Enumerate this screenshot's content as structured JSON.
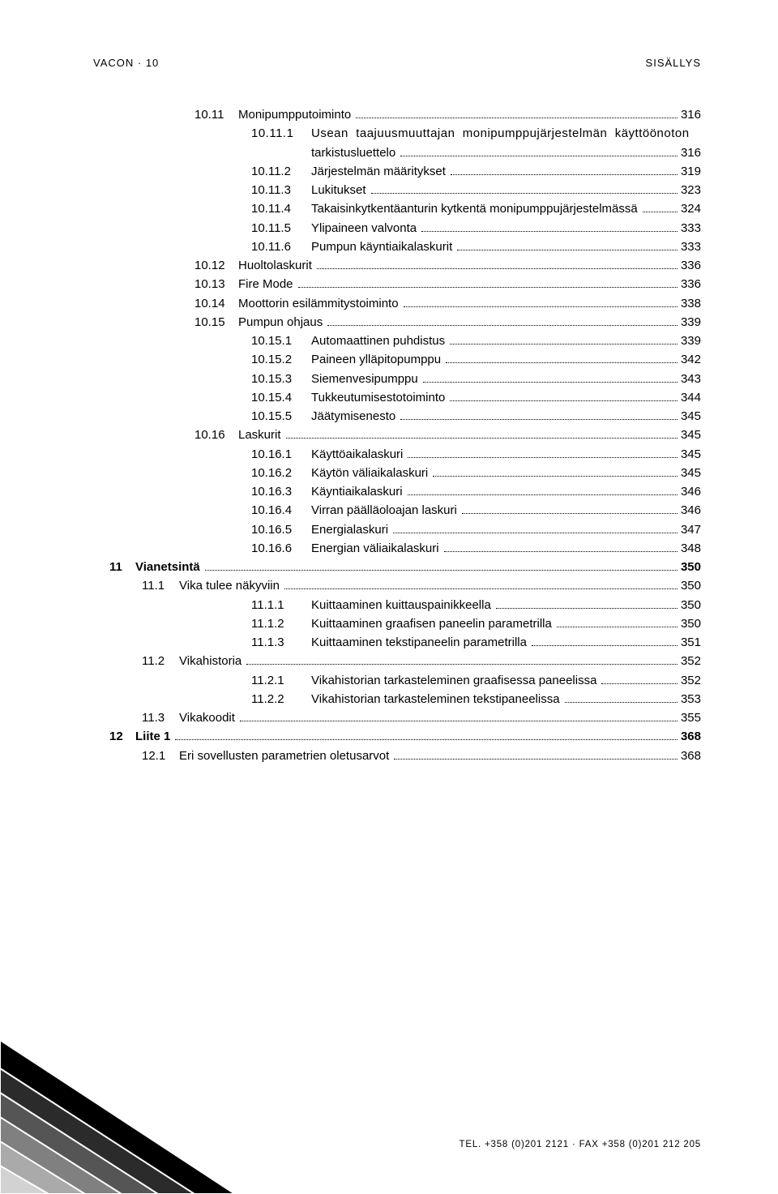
{
  "header": {
    "left": "VACON · 10",
    "right": "SISÄLLYS"
  },
  "footer": "TEL. +358 (0)201 2121 · FAX +358 (0)201 212 205",
  "toc": [
    {
      "lvl": 3,
      "num": "10.11",
      "title": "Monipumpputoiminto",
      "page": "316"
    },
    {
      "lvl": 4,
      "num": "10.11.1",
      "title": "Usean  taajuusmuuttajan  monipumppujärjestelmän  käyttöönoton tarkistusluettelo",
      "page": "316",
      "wrap": true
    },
    {
      "lvl": 4,
      "num": "10.11.2",
      "title": "Järjestelmän määritykset",
      "page": "319"
    },
    {
      "lvl": 4,
      "num": "10.11.3",
      "title": "Lukitukset",
      "page": "323"
    },
    {
      "lvl": 4,
      "num": "10.11.4",
      "title": "Takaisinkytkentäanturin kytkentä monipumppujärjestelmässä",
      "page": "324"
    },
    {
      "lvl": 4,
      "num": "10.11.5",
      "title": "Ylipaineen valvonta",
      "page": "333"
    },
    {
      "lvl": 4,
      "num": "10.11.6",
      "title": "Pumpun käyntiaikalaskurit",
      "page": "333"
    },
    {
      "lvl": 3,
      "num": "10.12",
      "title": "Huoltolaskurit",
      "page": "336"
    },
    {
      "lvl": 3,
      "num": "10.13",
      "title": "Fire Mode",
      "page": "336"
    },
    {
      "lvl": 3,
      "num": "10.14",
      "title": "Moottorin esilämmitystoiminto",
      "page": "338"
    },
    {
      "lvl": 3,
      "num": "10.15",
      "title": "Pumpun ohjaus",
      "page": "339"
    },
    {
      "lvl": 4,
      "num": "10.15.1",
      "title": "Automaattinen puhdistus",
      "page": "339"
    },
    {
      "lvl": 4,
      "num": "10.15.2",
      "title": "Paineen ylläpitopumppu",
      "page": "342"
    },
    {
      "lvl": 4,
      "num": "10.15.3",
      "title": "Siemenvesipumppu",
      "page": "343"
    },
    {
      "lvl": 4,
      "num": "10.15.4",
      "title": "Tukkeutumisestotoiminto",
      "page": "344"
    },
    {
      "lvl": 4,
      "num": "10.15.5",
      "title": "Jäätymisenesto",
      "page": "345"
    },
    {
      "lvl": 3,
      "num": "10.16",
      "title": "Laskurit",
      "page": "345"
    },
    {
      "lvl": 4,
      "num": "10.16.1",
      "title": "Käyttöaikalaskuri",
      "page": "345"
    },
    {
      "lvl": 4,
      "num": "10.16.2",
      "title": "Käytön väliaikalaskuri",
      "page": "345"
    },
    {
      "lvl": 4,
      "num": "10.16.3",
      "title": "Käyntiaikalaskuri",
      "page": "346"
    },
    {
      "lvl": 4,
      "num": "10.16.4",
      "title": "Virran päälläoloajan laskuri",
      "page": "346"
    },
    {
      "lvl": 4,
      "num": "10.16.5",
      "title": "Energialaskuri",
      "page": "347"
    },
    {
      "lvl": 4,
      "num": "10.16.6",
      "title": "Energian väliaikalaskuri",
      "page": "348"
    },
    {
      "lvl": 1,
      "num": "11",
      "title": "Vianetsintä",
      "page": "350"
    },
    {
      "lvl": 2,
      "num": "11.1",
      "title": "Vika tulee näkyviin",
      "page": "350"
    },
    {
      "lvl": 4,
      "num": "11.1.1",
      "title": "Kuittaaminen kuittauspainikkeella",
      "page": "350"
    },
    {
      "lvl": 4,
      "num": "11.1.2",
      "title": "Kuittaaminen graafisen paneelin parametrilla",
      "page": "350"
    },
    {
      "lvl": 4,
      "num": "11.1.3",
      "title": "Kuittaaminen tekstipaneelin parametrilla",
      "page": "351"
    },
    {
      "lvl": 2,
      "num": "11.2",
      "title": "Vikahistoria",
      "page": "352"
    },
    {
      "lvl": 4,
      "num": "11.2.1",
      "title": "Vikahistorian tarkasteleminen graafisessa paneelissa",
      "page": "352"
    },
    {
      "lvl": 4,
      "num": "11.2.2",
      "title": "Vikahistorian tarkasteleminen tekstipaneelissa",
      "page": "353"
    },
    {
      "lvl": 2,
      "num": "11.3",
      "title": "Vikakoodit",
      "page": "355"
    },
    {
      "lvl": 1,
      "num": "12",
      "title": "Liite 1",
      "page": "368"
    },
    {
      "lvl": 2,
      "num": "12.1",
      "title": "Eri sovellusten parametrien oletusarvot",
      "page": "368"
    }
  ],
  "style": {
    "text_color": "#000000",
    "background_color": "#ffffff",
    "font_size_body": 15,
    "font_size_header": 13,
    "font_size_footer": 11.5,
    "indent_lvl1": 20,
    "indent_lvl2": 60,
    "indent_lvl3": 125,
    "indent_lvl4": 195,
    "num_col_lvl3": 50,
    "num_col_lvl4": 70,
    "num_col_lvl2": 42,
    "num_col_lvl1": 28,
    "corner_gradient": [
      "#000000",
      "#4a4a4a",
      "#7a7a7a",
      "#a5a5a5",
      "#d0d0d0"
    ]
  }
}
